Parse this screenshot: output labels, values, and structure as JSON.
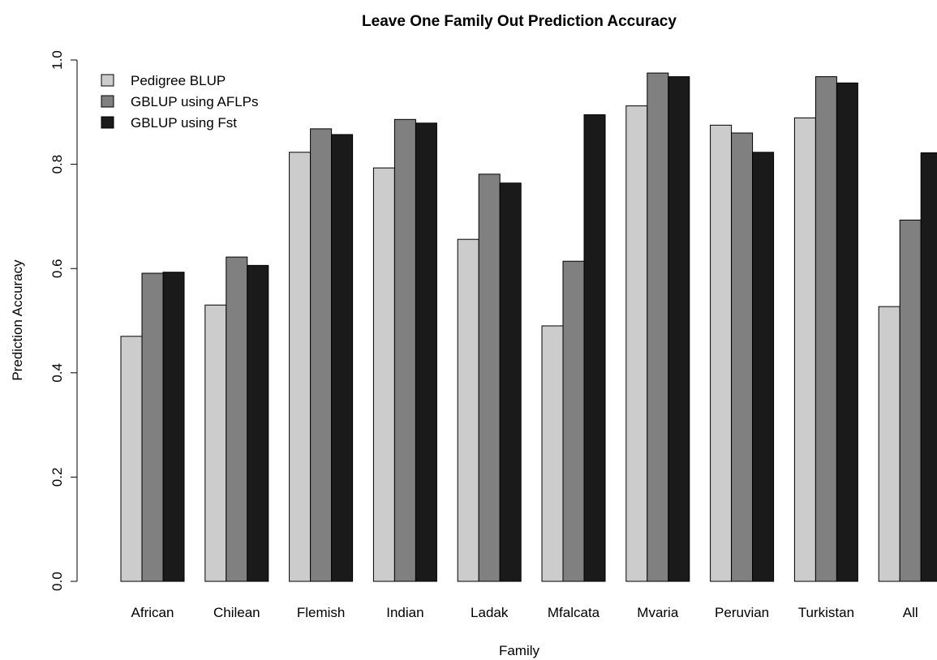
{
  "chart_data": {
    "type": "bar",
    "title": "Leave One Family Out Prediction Accuracy",
    "xlabel": "Family",
    "ylabel": "Prediction Accuracy",
    "ylim": [
      0,
      1.0
    ],
    "yticks": [
      "0.0",
      "0.2",
      "0.4",
      "0.6",
      "0.8",
      "1.0"
    ],
    "categories": [
      "African",
      "Chilean",
      "Flemish",
      "Indian",
      "Ladak",
      "Mfalcata",
      "Mvaria",
      "Peruvian",
      "Turkistan",
      "All"
    ],
    "series": [
      {
        "name": "Pedigree BLUP",
        "color": "#cccccc",
        "values": [
          0.47,
          0.53,
          0.823,
          0.793,
          0.656,
          0.49,
          0.912,
          0.875,
          0.889,
          0.527
        ]
      },
      {
        "name": "GBLUP using AFLPs",
        "color": "#808080",
        "values": [
          0.591,
          0.622,
          0.868,
          0.886,
          0.781,
          0.614,
          0.975,
          0.86,
          0.968,
          0.693
        ]
      },
      {
        "name": "GBLUP using Fst",
        "color": "#1a1a1a",
        "values": [
          0.593,
          0.606,
          0.857,
          0.879,
          0.764,
          0.895,
          0.968,
          0.823,
          0.956,
          0.822
        ]
      }
    ],
    "legend_position": "top-left",
    "grid": false
  }
}
